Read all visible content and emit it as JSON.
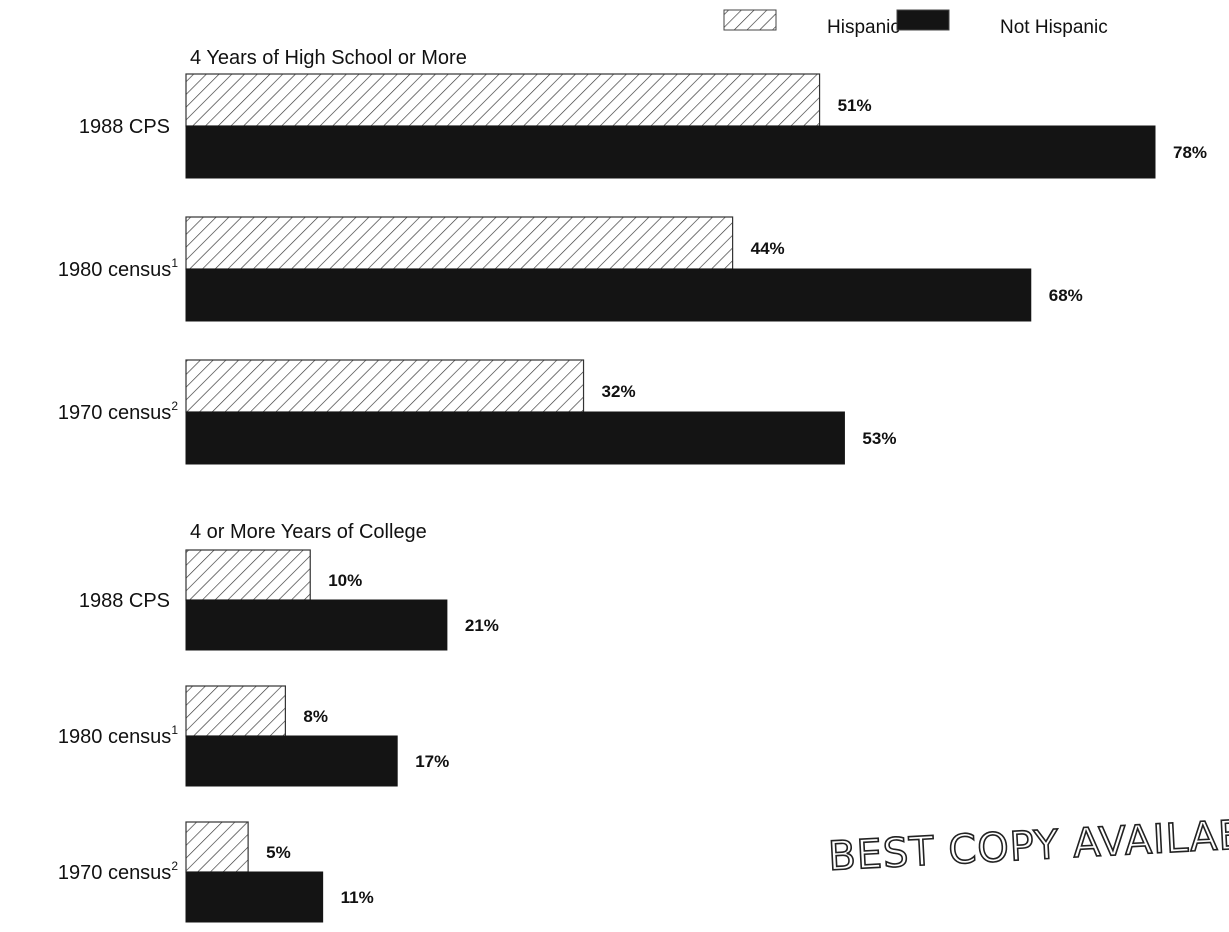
{
  "chart_data": {
    "type": "bar",
    "orientation": "horizontal",
    "legend": {
      "placement": "top-right",
      "entries": [
        {
          "name": "Hispanic",
          "pattern": "diagonal-hatch",
          "color": "#ffffff"
        },
        {
          "name": "Not Hispanic",
          "pattern": "solid-dark",
          "color": "#141414"
        }
      ]
    },
    "panels": [
      {
        "title": "4 Years of High School or More",
        "groups": [
          {
            "label": "1988 CPS",
            "footnote": "",
            "hispanic": 51,
            "not_hispanic": 78
          },
          {
            "label": "1980 census",
            "footnote": "1",
            "hispanic": 44,
            "not_hispanic": 68
          },
          {
            "label": "1970 census",
            "footnote": "2",
            "hispanic": 32,
            "not_hispanic": 53
          }
        ]
      },
      {
        "title": "4 or More Years of College",
        "groups": [
          {
            "label": "1988 CPS",
            "footnote": "",
            "hispanic": 10,
            "not_hispanic": 21
          },
          {
            "label": "1980 census",
            "footnote": "1",
            "hispanic": 8,
            "not_hispanic": 17
          },
          {
            "label": "1970 census",
            "footnote": "2",
            "hispanic": 5,
            "not_hispanic": 11
          }
        ]
      }
    ],
    "value_suffix": "%",
    "xlim": [
      0,
      78
    ],
    "grid": false
  },
  "stamp": {
    "text": "BEST COPY AVAILABLE"
  }
}
